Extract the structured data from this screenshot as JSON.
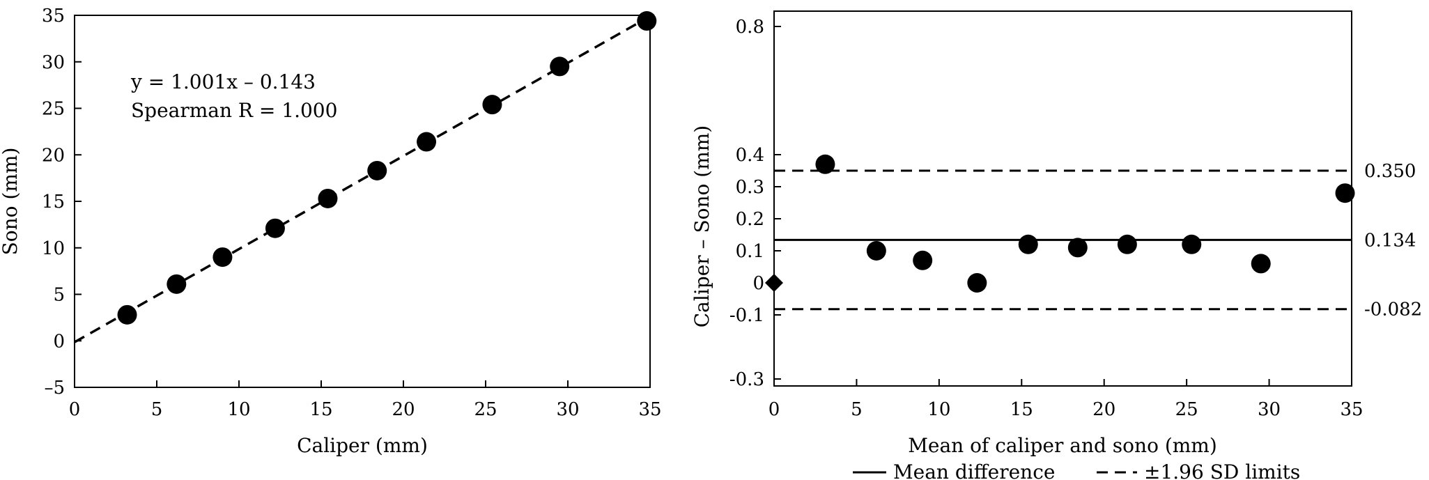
{
  "chart_data": [
    {
      "type": "scatter",
      "xlabel": "Caliper (mm)",
      "ylabel": "Sono (mm)",
      "xlim": [
        0,
        35
      ],
      "ylim": [
        -5,
        35
      ],
      "xticks": [
        "0",
        "5",
        "10",
        "15",
        "20",
        "25",
        "30",
        "35"
      ],
      "yticks": [
        "–5",
        "0",
        "5",
        "10",
        "15",
        "20",
        "25",
        "30",
        "35"
      ],
      "points": [
        {
          "x": 3.2,
          "y": 2.8
        },
        {
          "x": 6.2,
          "y": 6.1
        },
        {
          "x": 9.0,
          "y": 9.0
        },
        {
          "x": 12.2,
          "y": 12.1
        },
        {
          "x": 15.4,
          "y": 15.3
        },
        {
          "x": 18.4,
          "y": 18.3
        },
        {
          "x": 21.4,
          "y": 21.4
        },
        {
          "x": 25.4,
          "y": 25.4
        },
        {
          "x": 29.5,
          "y": 29.5
        },
        {
          "x": 34.8,
          "y": 34.4
        }
      ],
      "fit_line": {
        "slope": 1.001,
        "intercept": -0.143,
        "style": "dashed"
      },
      "annotations": [
        "y = 1.001x – 0.143",
        "Spearman R = 1.000"
      ],
      "grid": false
    },
    {
      "type": "scatter",
      "xlabel": "Mean of caliper and sono (mm)",
      "ylabel": "Caliper – Sono (mm)",
      "xlim": [
        0,
        35
      ],
      "ylim": [
        -0.3,
        0.8
      ],
      "xticks": [
        "0",
        "5",
        "10",
        "15",
        "20",
        "25",
        "30",
        "35"
      ],
      "yticks": [
        {
          "value": -0.3,
          "label": "-0.3"
        },
        {
          "value": -0.1,
          "label": "-0.1"
        },
        {
          "value": 0,
          "label": "0"
        },
        {
          "value": 0.1,
          "label": "0.1"
        },
        {
          "value": 0.2,
          "label": "0.2"
        },
        {
          "value": 0.3,
          "label": "0.3"
        },
        {
          "value": 0.4,
          "label": "0.4"
        },
        {
          "value": 0.8,
          "label": "0.8"
        }
      ],
      "points": [
        {
          "x": 3.1,
          "y": 0.37
        },
        {
          "x": 6.2,
          "y": 0.1
        },
        {
          "x": 9.0,
          "y": 0.07
        },
        {
          "x": 12.3,
          "y": 0.0
        },
        {
          "x": 15.4,
          "y": 0.12
        },
        {
          "x": 18.4,
          "y": 0.11
        },
        {
          "x": 21.4,
          "y": 0.12
        },
        {
          "x": 25.3,
          "y": 0.12
        },
        {
          "x": 29.5,
          "y": 0.06
        },
        {
          "x": 34.6,
          "y": 0.28
        }
      ],
      "diamond_points": [
        {
          "x": 0,
          "y": 0
        }
      ],
      "reference_lines": [
        {
          "value": 0.35,
          "label": "0.350",
          "style": "dashed"
        },
        {
          "value": 0.134,
          "label": "0.134",
          "style": "solid"
        },
        {
          "value": -0.082,
          "label": "-0.082",
          "style": "dashed"
        }
      ],
      "legend": {
        "placement": "bottom",
        "items": [
          {
            "label": "Mean difference",
            "style": "solid"
          },
          {
            "label": "±1.96 SD limits",
            "style": "dashed"
          }
        ]
      },
      "grid": false
    }
  ]
}
